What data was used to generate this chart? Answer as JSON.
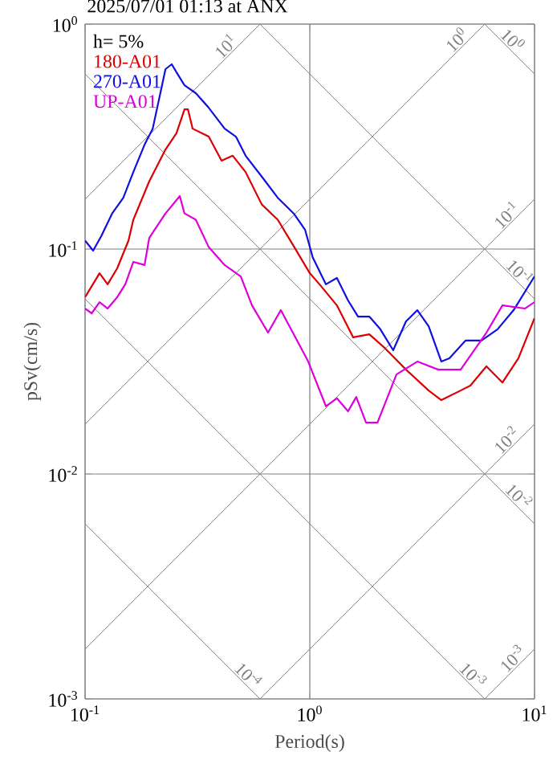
{
  "chart_data": {
    "type": "line",
    "title": "2025/07/01 01:13 at ANX",
    "xlabel": "Period(s)",
    "ylabel": "pSv(cm/s)",
    "log": "xy",
    "grid": true,
    "legend": "top left",
    "marker": "none",
    "line_style": "solid",
    "xlim": [
      0.1,
      10
    ],
    "ylim": [
      0.001,
      1
    ],
    "xticks": [
      {
        "value": 0.1,
        "label": "10$^{-1}$"
      },
      {
        "value": 1,
        "label": "10$^{0}$"
      },
      {
        "value": 10,
        "label": "10$^{1}$"
      }
    ],
    "yticks": [
      {
        "value": 0.001,
        "label": "10$^{-3}$"
      },
      {
        "value": 0.01,
        "label": "10$^{-2}$"
      },
      {
        "value": 0.1,
        "label": "10$^{-1}$"
      },
      {
        "value": 1,
        "label": "10$^{0}$"
      }
    ],
    "series": [
      {
        "color": "#808080",
        "x": [
          6,
          10
        ],
        "values": [
          1,
          0.6
        ]
      },
      {
        "color": "#808080",
        "x": [
          0.6,
          10
        ],
        "values": [
          1,
          0.06
        ]
      },
      {
        "color": "#808080",
        "x": [
          0.1,
          10
        ],
        "values": [
          0.6,
          0.006
        ]
      },
      {
        "color": "#808080",
        "x": [
          0.1,
          6
        ],
        "values": [
          0.06,
          0.001
        ]
      },
      {
        "color": "#808080",
        "x": [
          0.1,
          0.6
        ],
        "values": [
          0.006,
          0.001
        ]
      },
      {
        "color": "#808080",
        "x": [
          0.1,
          0.6
        ],
        "values": [
          0.1667,
          1
        ]
      },
      {
        "color": "#808080",
        "x": [
          0.1,
          6
        ],
        "values": [
          0.01667,
          1
        ]
      },
      {
        "color": "#808080",
        "x": [
          0.1,
          10
        ],
        "values": [
          0.001667,
          0.1667
        ]
      },
      {
        "color": "#808080",
        "x": [
          0.6,
          10
        ],
        "values": [
          0.001,
          0.01667
        ]
      },
      {
        "color": "#808080",
        "x": [
          6,
          10
        ],
        "values": [
          0.001,
          0.001667
        ]
      },
      {
        "name": "180-A01",
        "color": "#dd0000",
        "x": [
          0.1,
          0.116,
          0.126,
          0.139,
          0.156,
          0.164,
          0.193,
          0.228,
          0.255,
          0.277,
          0.287,
          0.301,
          0.355,
          0.405,
          0.454,
          0.518,
          0.611,
          0.72,
          0.848,
          1.0,
          1.12,
          1.32,
          1.56,
          1.84,
          2.17,
          2.68,
          3.38,
          3.85,
          4.69,
          5.18,
          6.11,
          7.2,
          8.48,
          10
        ],
        "values": [
          0.0611,
          0.0781,
          0.0697,
          0.0821,
          0.109,
          0.135,
          0.2,
          0.277,
          0.327,
          0.418,
          0.418,
          0.343,
          0.316,
          0.247,
          0.26,
          0.22,
          0.158,
          0.135,
          0.103,
          0.0781,
          0.0686,
          0.0562,
          0.0405,
          0.0418,
          0.0361,
          0.0291,
          0.0235,
          0.0213,
          0.0235,
          0.0247,
          0.0301,
          0.0255,
          0.0327,
          0.0493
        ]
      },
      {
        "name": "270-A01",
        "color": "#1010e0",
        "x": [
          0.1,
          0.1086,
          0.118,
          0.132,
          0.148,
          0.164,
          0.184,
          0.2,
          0.217,
          0.228,
          0.243,
          0.255,
          0.277,
          0.311,
          0.355,
          0.418,
          0.469,
          0.518,
          0.611,
          0.72,
          0.848,
          0.952,
          1.03,
          1.18,
          1.32,
          1.48,
          1.64,
          1.84,
          2.06,
          2.35,
          2.68,
          3.01,
          3.38,
          3.85,
          4.18,
          4.93,
          5.81,
          6.85,
          8.07,
          10
        ],
        "values": [
          0.109,
          0.0984,
          0.114,
          0.144,
          0.169,
          0.22,
          0.291,
          0.343,
          0.501,
          0.631,
          0.663,
          0.611,
          0.535,
          0.493,
          0.425,
          0.343,
          0.316,
          0.26,
          0.21,
          0.169,
          0.144,
          0.122,
          0.092,
          0.0697,
          0.0744,
          0.0591,
          0.0501,
          0.0501,
          0.044,
          0.0355,
          0.0477,
          0.0535,
          0.0454,
          0.0316,
          0.0327,
          0.0392,
          0.0392,
          0.044,
          0.0535,
          0.0756
        ]
      },
      {
        "name": "UP-A01",
        "color": "#dd00dd",
        "x": [
          0.1,
          0.107,
          0.116,
          0.126,
          0.139,
          0.151,
          0.164,
          0.184,
          0.193,
          0.228,
          0.264,
          0.277,
          0.311,
          0.355,
          0.418,
          0.493,
          0.553,
          0.652,
          0.743,
          0.848,
          0.984,
          1.18,
          1.32,
          1.48,
          1.61,
          1.78,
          2.0,
          2.43,
          3.01,
          3.73,
          4.69,
          6.11,
          7.2,
          9.06,
          10
        ],
        "values": [
          0.0544,
          0.0518,
          0.0581,
          0.0544,
          0.0611,
          0.0697,
          0.0877,
          0.0849,
          0.112,
          0.144,
          0.172,
          0.144,
          0.135,
          0.102,
          0.0849,
          0.0756,
          0.0562,
          0.0425,
          0.0535,
          0.0418,
          0.0316,
          0.02,
          0.0217,
          0.019,
          0.022,
          0.0169,
          0.0169,
          0.0277,
          0.0316,
          0.0291,
          0.0291,
          0.0425,
          0.0562,
          0.0544,
          0.0581
        ]
      }
    ],
    "annotations": [
      "h= 5%",
      {
        "text": "10$^{0}$",
        "x": 7.5,
        "y": 0.8
      },
      {
        "text": "10$^{-1}$",
        "x": 8.07,
        "y": 0.0743
      },
      {
        "text": "10$^{-2}$",
        "x": 8,
        "y": 0.0075
      },
      {
        "text": "10$^{-3}$",
        "x": 5,
        "y": 0.0012
      },
      {
        "text": "10$^{-4}$",
        "x": 0.5,
        "y": 0.0012
      },
      {
        "text": "10$^{1}$",
        "x": 0.45,
        "y": 0.75
      },
      {
        "text": "10$^{0}$",
        "x": 4.8,
        "y": 0.8
      },
      {
        "text": "10$^{-1}$",
        "x": 8,
        "y": 0.133
      },
      {
        "text": "10$^{-2}$",
        "x": 8,
        "y": 0.0133
      },
      {
        "text": "10$^{-3}$",
        "x": 8.5,
        "y": 0.00142
      }
    ]
  }
}
